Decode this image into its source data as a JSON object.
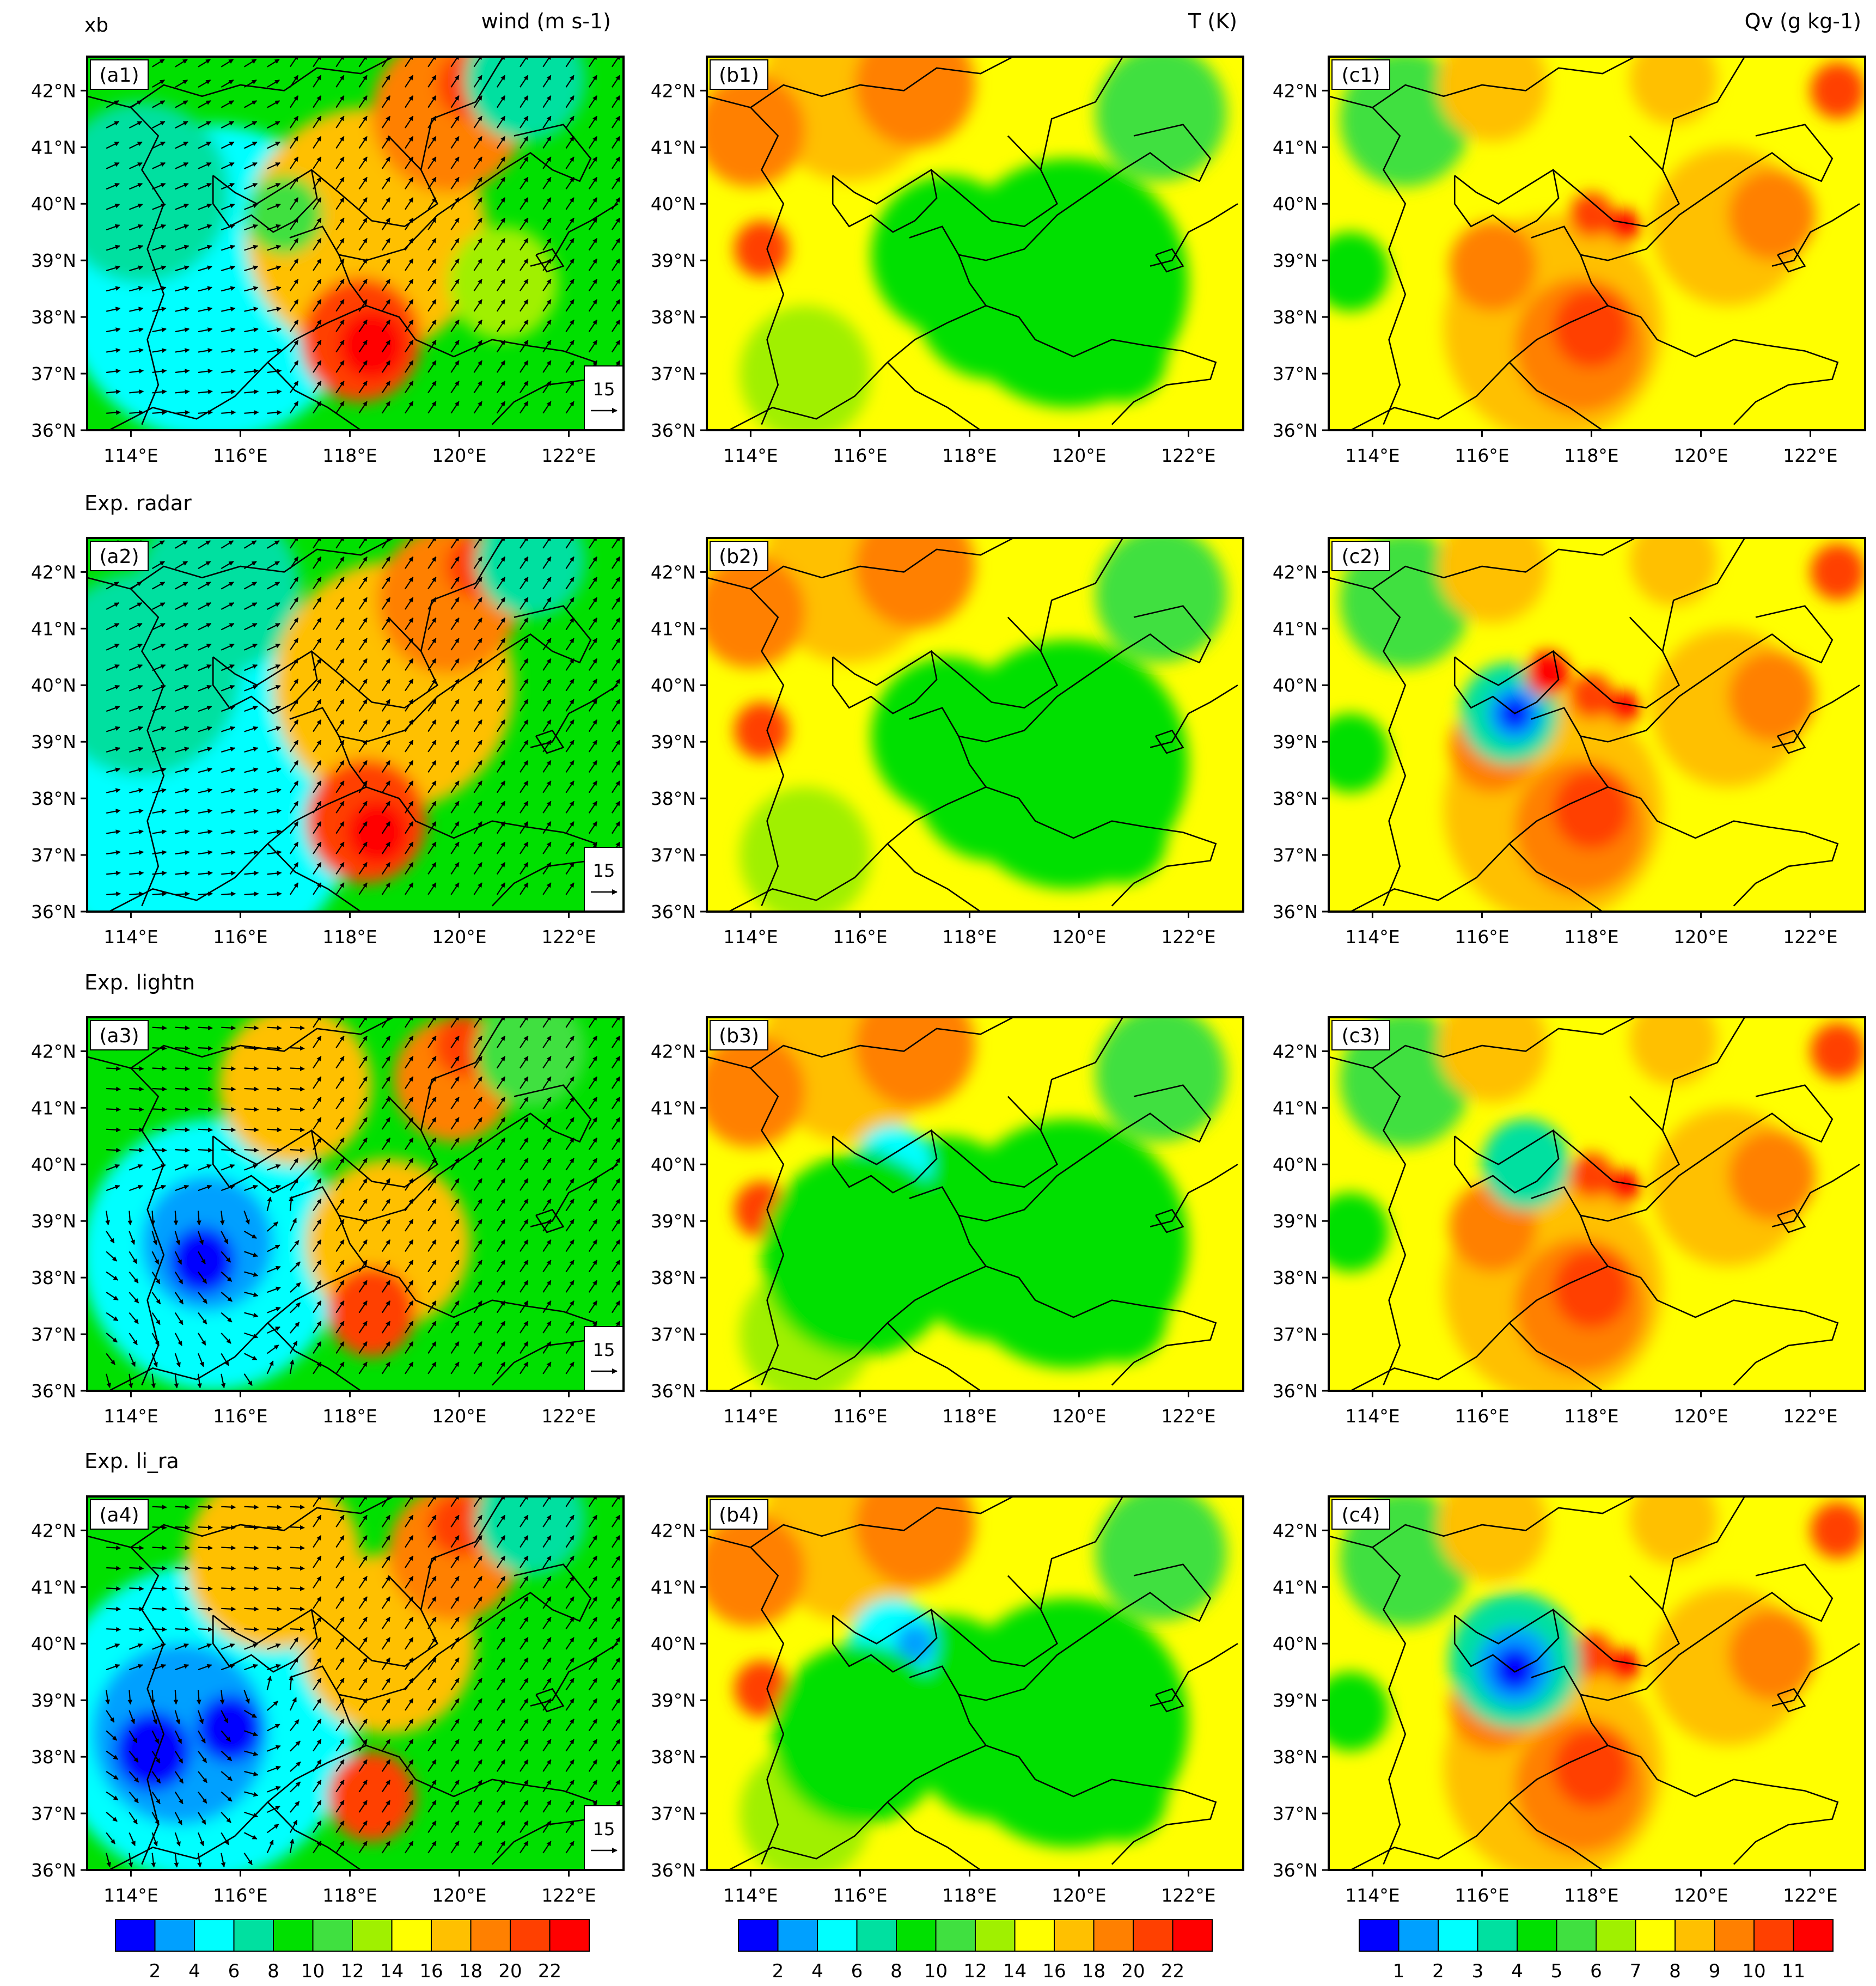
{
  "figure": {
    "column_titles": [
      "wind (m s-1)",
      "T (K)",
      "Qv (g kg-1)"
    ],
    "row_titles": [
      "xb",
      "Exp. radar",
      "Exp. lightn",
      "Exp. li_ra"
    ],
    "panel_labels": [
      [
        "(a1)",
        "(b1)",
        "(c1)"
      ],
      [
        "(a2)",
        "(b2)",
        "(c2)"
      ],
      [
        "(a3)",
        "(b3)",
        "(c3)"
      ],
      [
        "(a4)",
        "(b4)",
        "(c4)"
      ]
    ],
    "lat_ticks": [
      "42°N",
      "41°N",
      "40°N",
      "39°N",
      "38°N",
      "37°N",
      "36°N"
    ],
    "lon_ticks": [
      "114°E",
      "116°E",
      "118°E",
      "120°E",
      "122°E"
    ],
    "map_extent": {
      "lon": [
        113.2,
        123
      ],
      "lat": [
        36,
        42.6
      ]
    },
    "reference_vector": "15",
    "colorbars": [
      {
        "name": "wind",
        "labels": [
          "2",
          "4",
          "6",
          "8",
          "10",
          "12",
          "14",
          "16",
          "18",
          "20",
          "22"
        ]
      },
      {
        "name": "T",
        "labels": [
          "2",
          "4",
          "6",
          "8",
          "10",
          "12",
          "14",
          "16",
          "18",
          "20",
          "22"
        ]
      },
      {
        "name": "Qv",
        "labels": [
          "1",
          "2",
          "3",
          "4",
          "5",
          "6",
          "7",
          "8",
          "9",
          "10",
          "11"
        ]
      }
    ],
    "palette": [
      "#0000ff",
      "#00a0ff",
      "#00ffff",
      "#00e0a0",
      "#00e000",
      "#40e040",
      "#a0f000",
      "#ffff00",
      "#ffc000",
      "#ff8000",
      "#ff4000",
      "#ff0000"
    ],
    "coast_color": "#000000"
  }
}
